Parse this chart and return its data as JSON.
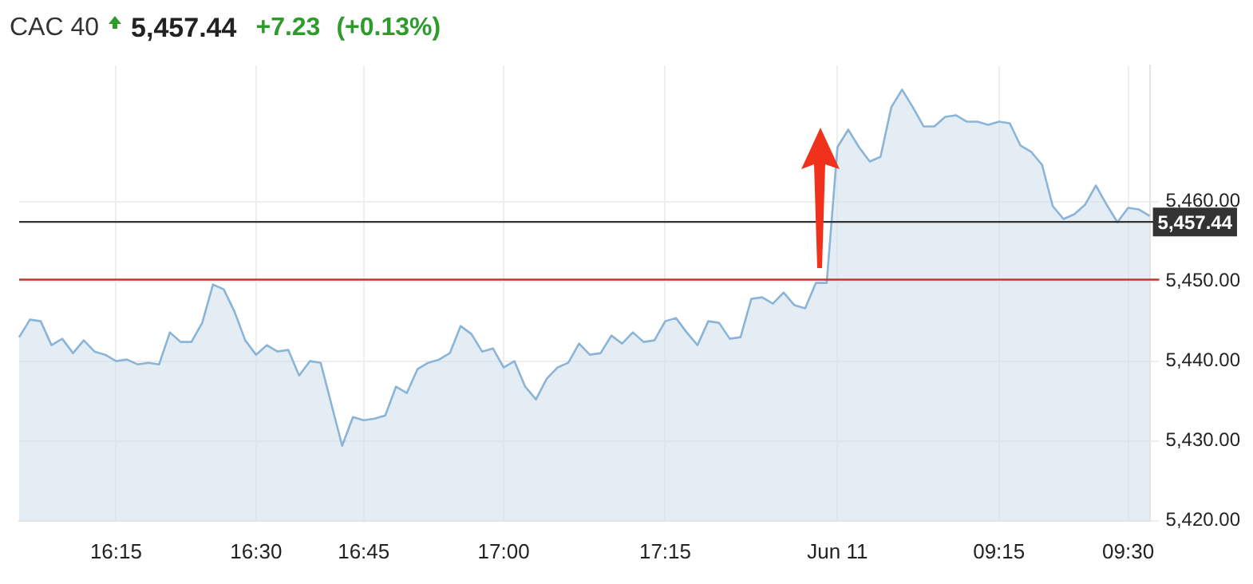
{
  "chart_data": {
    "type": "area",
    "title": "CAC 40",
    "annotations": [
      "5,457.44",
      "+7.23",
      "(+0.13%)"
    ],
    "categories": [
      null,
      null,
      null,
      null,
      null,
      null,
      null,
      null,
      null,
      "16:15",
      null,
      null,
      null,
      null,
      null,
      null,
      null,
      null,
      null,
      null,
      null,
      null,
      "16:30",
      null,
      null,
      null,
      null,
      null,
      null,
      null,
      null,
      null,
      "16:45",
      null,
      null,
      null,
      null,
      null,
      null,
      null,
      null,
      null,
      null,
      null,
      null,
      "17:00",
      null,
      null,
      null,
      null,
      null,
      null,
      null,
      null,
      null,
      null,
      null,
      null,
      null,
      null,
      "17:15",
      null,
      null,
      null,
      null,
      null,
      null,
      null,
      null,
      null,
      null,
      null,
      null,
      null,
      null,
      null,
      "Jun 11",
      null,
      null,
      null,
      null,
      null,
      null,
      null,
      null,
      null,
      null,
      null,
      null,
      null,
      null,
      "09:15",
      null,
      null,
      null,
      null,
      null,
      null,
      null,
      null,
      null,
      null,
      null,
      "09:30",
      null,
      null
    ],
    "series": [
      {
        "color": "#8ab4d8",
        "values": [
          5443,
          5445.2,
          5445,
          5442,
          5442.8,
          5441,
          5442.6,
          5441.2,
          5440.8,
          5440,
          5440.2,
          5439.6,
          5439.8,
          5439.6,
          5443.6,
          5442.4,
          5442.4,
          5444.8,
          5449.6,
          5449,
          5446.2,
          5442.6,
          5440.8,
          5442,
          5441.2,
          5441.4,
          5438.2,
          5440,
          5439.8,
          5434.6,
          5429.4,
          5433,
          5432.6,
          5432.8,
          5433.2,
          5436.8,
          5436,
          5439,
          5439.8,
          5440.2,
          5441,
          5444.4,
          5443.4,
          5441.2,
          5441.6,
          5439.2,
          5440,
          5436.8,
          5435.2,
          5437.8,
          5439.2,
          5439.8,
          5442.2,
          5440.8,
          5441,
          5443.2,
          5442.2,
          5443.6,
          5442.4,
          5442.6,
          5445,
          5445.4,
          5443.6,
          5442,
          5445,
          5444.8,
          5442.8,
          5443,
          5447.8,
          5448,
          5447.2,
          5448.6,
          5447,
          5446.6,
          5449.8,
          5449.8,
          5466.8,
          5469,
          5466.8,
          5465,
          5465.6,
          5471.8,
          5474,
          5471.8,
          5469.4,
          5469.4,
          5470.6,
          5470.8,
          5470,
          5470,
          5469.6,
          5470,
          5469.8,
          5467,
          5466.2,
          5464.6,
          5459.4,
          5457.8,
          5458.4,
          5459.6,
          5462,
          5459.6,
          5457.4,
          5459.2,
          5459,
          5458.2
        ]
      }
    ],
    "ylim": [
      5420,
      5477
    ],
    "yticks": [
      {
        "value": 5420,
        "label": "5,420.00"
      },
      {
        "value": 5430,
        "label": "5,430.00"
      },
      {
        "value": 5440,
        "label": "5,440.00"
      },
      {
        "value": 5450,
        "label": "5,450.00"
      },
      {
        "value": 5460,
        "label": "5,460.00"
      }
    ],
    "ref_lines": [
      {
        "axis": "y",
        "value": 5457.44,
        "label": "5,457.44",
        "color": "#333333"
      },
      {
        "axis": "y",
        "value": 5450.21,
        "color": "#c0392b"
      }
    ],
    "grid": true,
    "legend": false
  }
}
